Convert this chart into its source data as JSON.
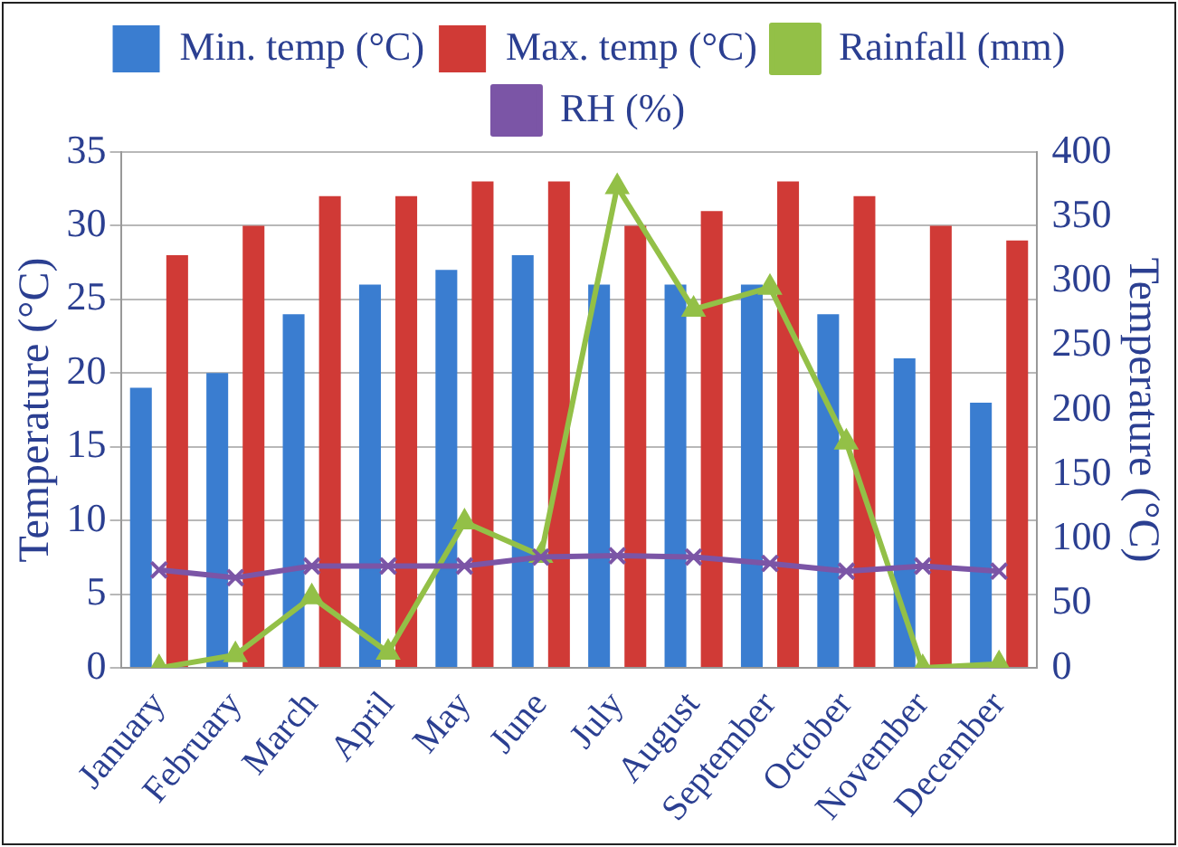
{
  "chart_data": {
    "type": "bar",
    "categories": [
      "January",
      "February",
      "March",
      "April",
      "May",
      "June",
      "July",
      "August",
      "September",
      "October",
      "November",
      "December"
    ],
    "ylabel": "Temperature (°C)",
    "y2label": "Temperature (°C)",
    "ylim": [
      0,
      35
    ],
    "yticks": [
      0,
      5,
      10,
      15,
      20,
      25,
      30,
      35
    ],
    "y2lim": [
      0,
      400
    ],
    "y2ticks": [
      0,
      50,
      100,
      150,
      200,
      250,
      300,
      350,
      400
    ],
    "grid": "y",
    "legend": "top",
    "series": [
      {
        "name": "Min. temp (°C)",
        "color": "#3a7dd0",
        "values": [
          19,
          20,
          24,
          26,
          27,
          28,
          26,
          26,
          26,
          24,
          21,
          18
        ]
      },
      {
        "name": "Max. temp (°C)",
        "color": "#d03a36",
        "values": [
          28,
          30,
          32,
          32,
          33,
          33,
          30,
          31,
          33,
          32,
          30,
          29
        ]
      },
      {
        "name": "Rainfall (mm)",
        "type": "line",
        "axis": "y2",
        "marker": "triangle",
        "color": "#93c047",
        "values": [
          0,
          10,
          55,
          12,
          113,
          87,
          373,
          278,
          295,
          175,
          0,
          3
        ]
      },
      {
        "name": "RH (%)",
        "type": "line",
        "axis": "y2",
        "marker": "cross",
        "color": "#7b55a6",
        "values": [
          76,
          70,
          79,
          79,
          79,
          86,
          87,
          86,
          81,
          75,
          79,
          75
        ]
      }
    ]
  }
}
